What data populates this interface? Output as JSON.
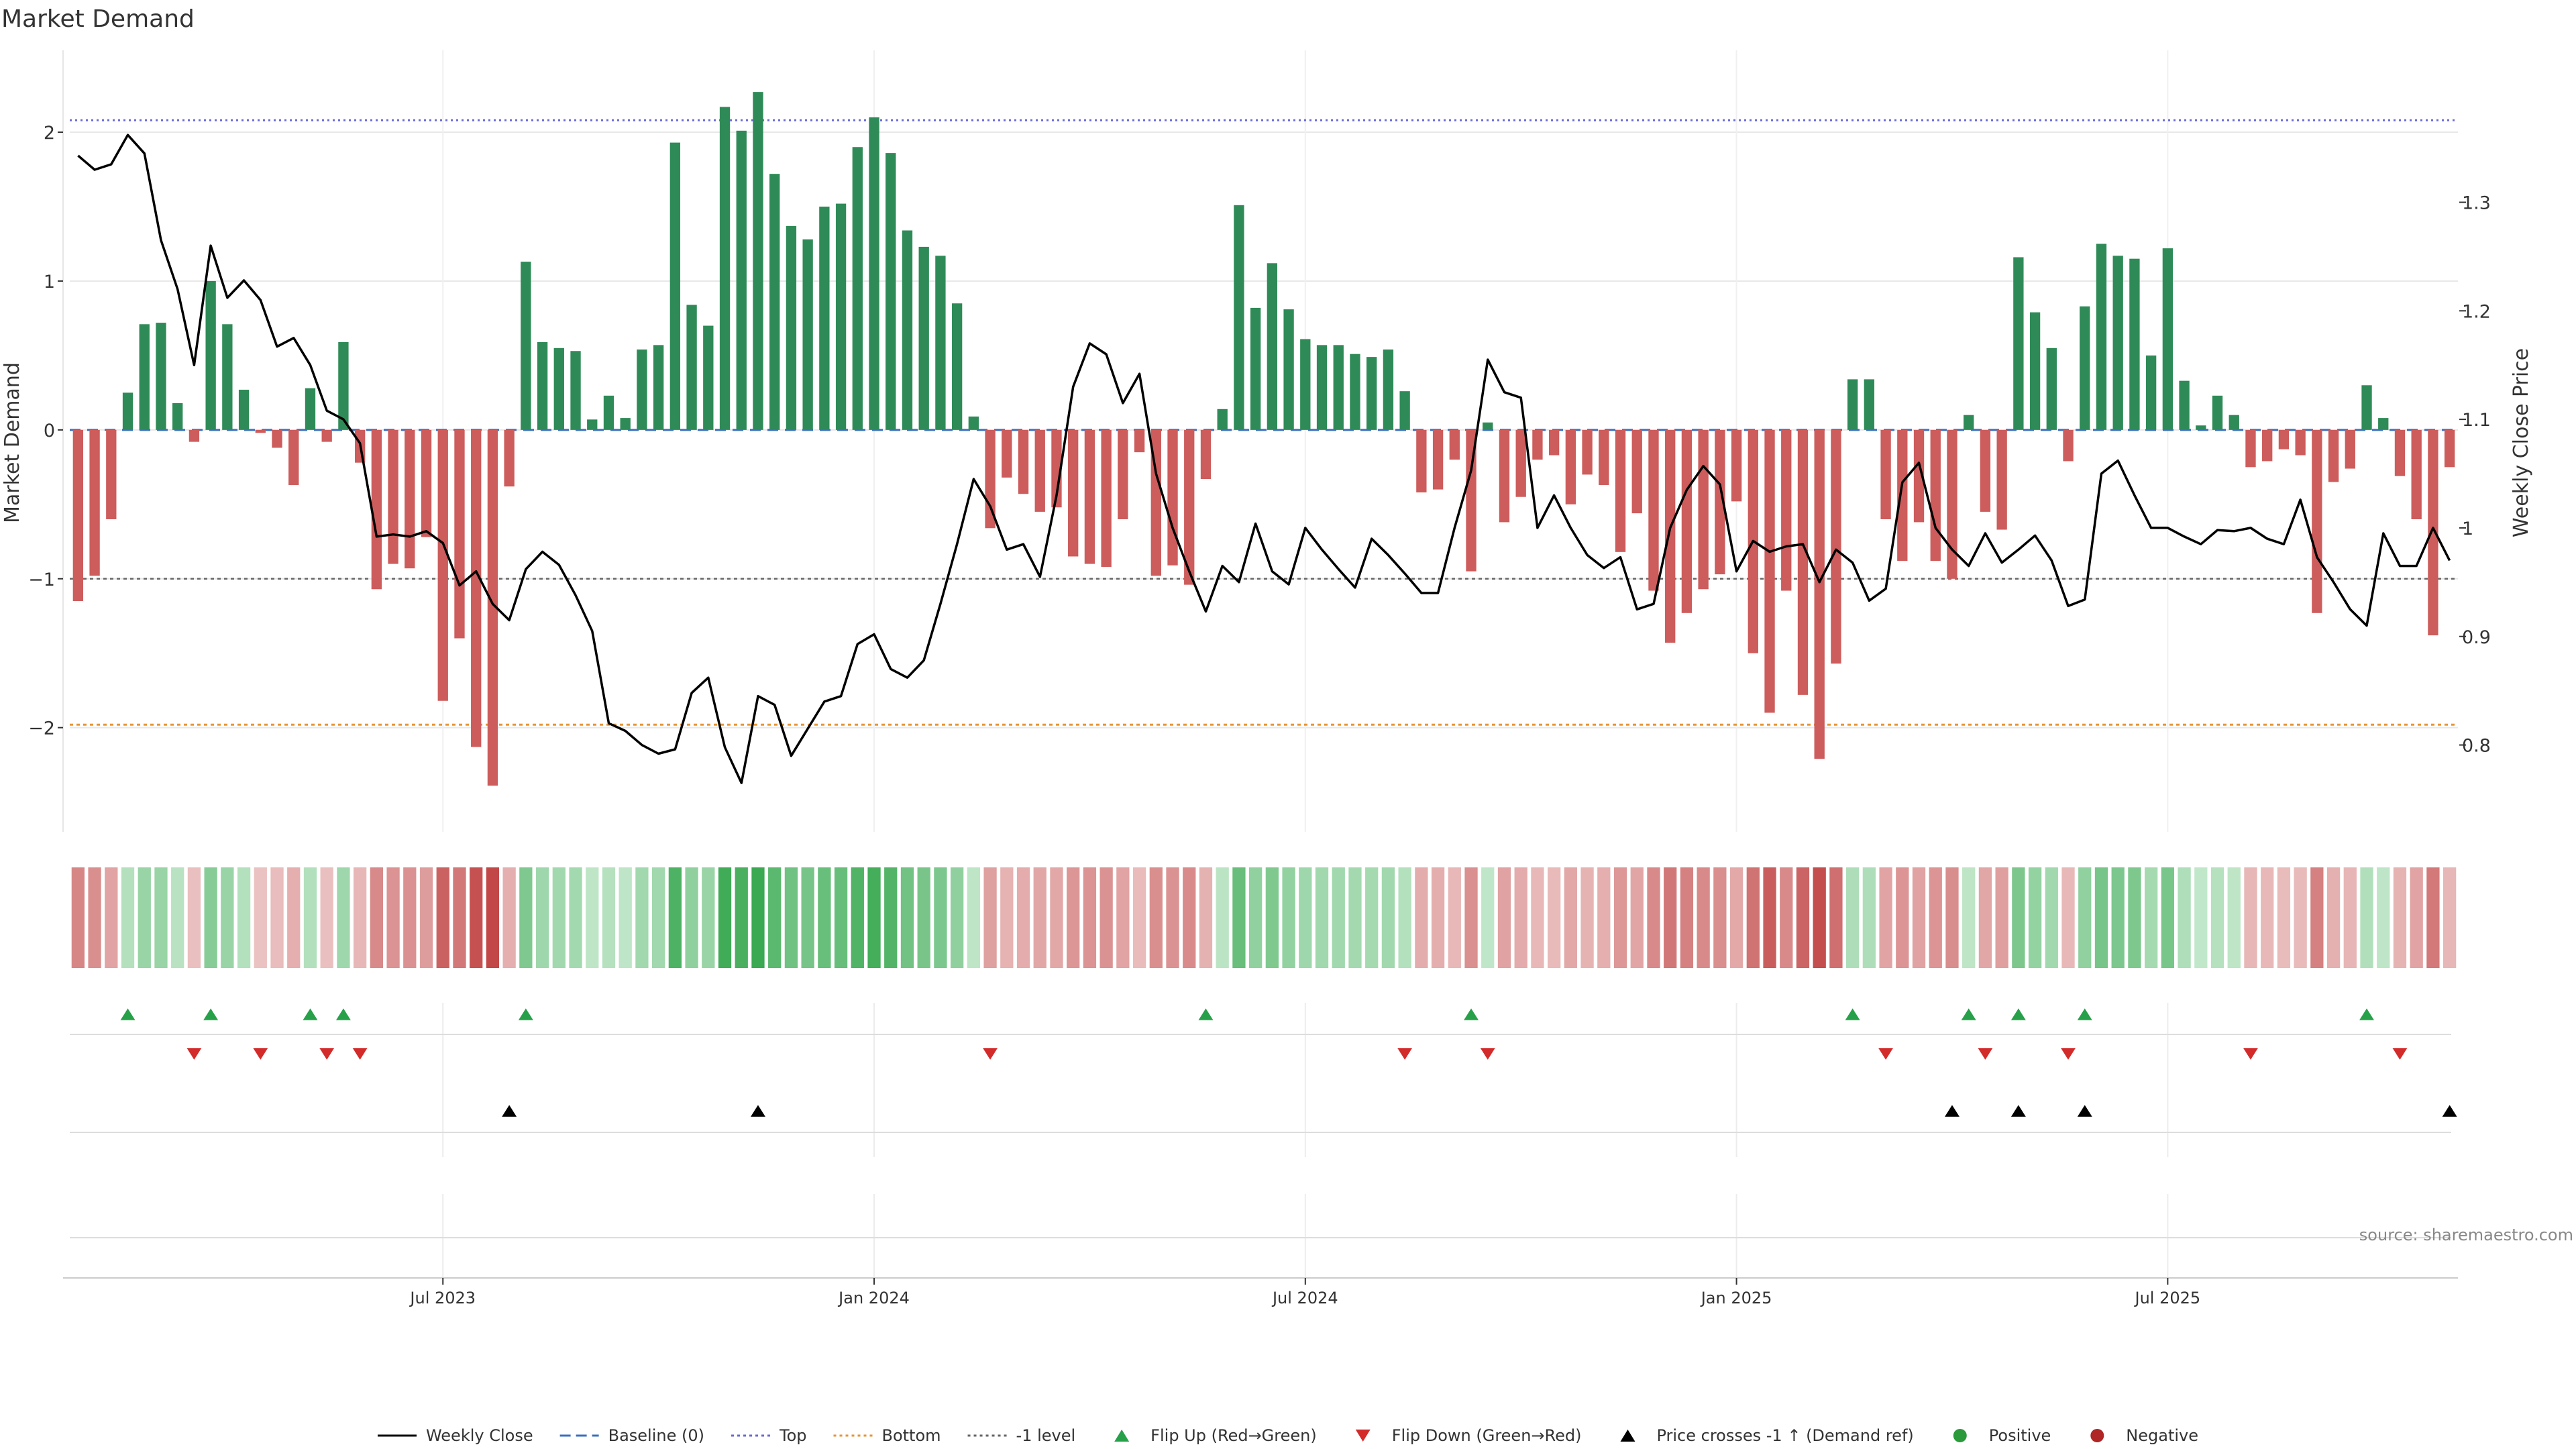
{
  "chart_data": {
    "type": "bar",
    "title": "Market Demand",
    "ylabel": "Market Demand",
    "y2label": "Weekly Close Price",
    "ylim": [
      -2.7,
      2.55
    ],
    "y2lim": [
      0.72,
      1.44
    ],
    "yticks": [
      2,
      1,
      0,
      -1,
      -2
    ],
    "ytick_labels": [
      "2",
      "1",
      "0",
      "−1",
      "−2"
    ],
    "y2ticks": [
      1.3,
      1.2,
      1.1,
      1.0,
      0.9,
      0.8
    ],
    "y2tick_labels": [
      "1.3",
      "1.2",
      "1.1",
      "1",
      "0.9",
      "0.8"
    ],
    "reference_lines": {
      "top": 2.08,
      "bottom": -1.98,
      "minus_one": -1.0,
      "baseline": 0
    },
    "x_count": 144,
    "xticks": [
      {
        "index": 22,
        "label": "Jul 2023"
      },
      {
        "index": 48,
        "label": "Jan 2024"
      },
      {
        "index": 74,
        "label": "Jul 2024"
      },
      {
        "index": 100,
        "label": "Jan 2025"
      },
      {
        "index": 126,
        "label": "Jul 2025"
      }
    ],
    "series": [
      {
        "name": "Market Demand",
        "type": "bar",
        "values": [
          -1.15,
          -0.98,
          -0.6,
          0.25,
          0.71,
          0.72,
          0.18,
          -0.08,
          1.0,
          0.71,
          0.27,
          -0.02,
          -0.12,
          -0.37,
          0.28,
          -0.08,
          0.59,
          -0.22,
          -1.07,
          -0.9,
          -0.93,
          -0.72,
          -1.82,
          -1.4,
          -2.13,
          -2.39,
          -0.38,
          1.13,
          0.59,
          0.55,
          0.53,
          0.07,
          0.23,
          0.08,
          0.54,
          0.57,
          1.93,
          0.84,
          0.7,
          2.17,
          2.01,
          2.27,
          1.72,
          1.37,
          1.28,
          1.5,
          1.52,
          1.9,
          2.1,
          1.86,
          1.34,
          1.23,
          1.17,
          0.85,
          0.09,
          -0.66,
          -0.32,
          -0.43,
          -0.55,
          -0.52,
          -0.85,
          -0.9,
          -0.92,
          -0.6,
          -0.15,
          -0.98,
          -0.91,
          -1.04,
          -0.33,
          0.14,
          1.51,
          0.82,
          1.12,
          0.81,
          0.61,
          0.57,
          0.57,
          0.51,
          0.49,
          0.54,
          0.26,
          -0.42,
          -0.4,
          -0.2,
          -0.95,
          0.05,
          -0.62,
          -0.45,
          -0.2,
          -0.17,
          -0.5,
          -0.3,
          -0.37,
          -0.82,
          -0.56,
          -1.08,
          -1.43,
          -1.23,
          -1.07,
          -0.97,
          -0.48,
          -1.5,
          -1.9,
          -1.08,
          -1.78,
          -2.21,
          -1.57,
          0.34,
          0.34,
          -0.6,
          -0.88,
          -0.62,
          -0.88,
          -1.0,
          0.1,
          -0.55,
          -0.67,
          1.16,
          0.79,
          0.55,
          -0.21,
          0.83,
          1.25,
          1.17,
          1.15,
          0.5,
          1.22,
          0.33,
          0.03,
          0.23,
          0.1,
          -0.25,
          -0.21,
          -0.13,
          -0.17,
          -1.23,
          -0.35,
          -0.26,
          0.3,
          0.08,
          -0.31,
          -0.6,
          -1.38,
          -0.25
        ]
      },
      {
        "name": "Weekly Close",
        "type": "line",
        "axis": "right",
        "values": [
          1.343,
          1.33,
          1.335,
          1.362,
          1.345,
          1.265,
          1.22,
          1.15,
          1.26,
          1.212,
          1.228,
          1.21,
          1.167,
          1.175,
          1.15,
          1.108,
          1.1,
          1.078,
          0.992,
          0.994,
          0.992,
          0.997,
          0.986,
          0.947,
          0.96,
          0.93,
          0.915,
          0.962,
          0.978,
          0.966,
          0.938,
          0.905,
          0.82,
          0.813,
          0.8,
          0.792,
          0.796,
          0.848,
          0.862,
          0.798,
          0.765,
          0.845,
          0.837,
          0.79,
          0.815,
          0.84,
          0.845,
          0.893,
          0.902,
          0.87,
          0.862,
          0.878,
          0.93,
          0.985,
          1.045,
          1.02,
          0.98,
          0.985,
          0.955,
          1.03,
          1.13,
          1.17,
          1.16,
          1.115,
          1.142,
          1.05,
          1.0,
          0.96,
          0.923,
          0.965,
          0.95,
          1.004,
          0.96,
          0.948,
          1.0,
          0.98,
          0.962,
          0.945,
          0.99,
          0.975,
          0.958,
          0.94,
          0.94,
          1.0,
          1.053,
          1.155,
          1.125,
          1.12,
          1.0,
          1.03,
          1.0,
          0.975,
          0.963,
          0.973,
          0.925,
          0.93,
          1.0,
          1.035,
          1.057,
          1.04,
          0.96,
          0.988,
          0.978,
          0.983,
          0.985,
          0.95,
          0.98,
          0.968,
          0.933,
          0.944,
          1.042,
          1.06,
          1.0,
          0.98,
          0.965,
          0.995,
          0.968,
          0.98,
          0.993,
          0.97,
          0.928,
          0.934,
          1.05,
          1.062,
          1.03,
          1.0,
          1.0,
          0.992,
          0.985,
          0.998,
          0.997,
          1.0,
          0.99,
          0.985,
          1.026,
          0.973,
          0.95,
          0.925,
          0.91,
          0.995,
          0.965,
          0.965,
          1.0,
          0.97
        ]
      }
    ],
    "heat_strip": {
      "name": "Demand Heat"
    },
    "markers": {
      "flip_up": [
        3,
        8,
        14,
        16,
        27,
        68,
        84,
        107,
        114,
        117,
        121,
        138
      ],
      "flip_down": [
        7,
        11,
        15,
        17,
        55,
        80,
        85,
        109,
        115,
        120,
        131,
        140
      ],
      "price_cross": [
        26,
        41,
        113,
        117,
        121,
        143
      ]
    },
    "source": "source: sharemaestro.com",
    "legend": {
      "placement": "bottom-center",
      "items": [
        {
          "label": "Weekly Close",
          "kind": "line",
          "color": "#000000",
          "dash": "none"
        },
        {
          "label": "Baseline (0)",
          "kind": "line",
          "color": "#3a6fbf",
          "dash": "long"
        },
        {
          "label": "Top",
          "kind": "line",
          "color": "#6a6ad8",
          "dash": "dot"
        },
        {
          "label": "Bottom",
          "kind": "line",
          "color": "#e69536",
          "dash": "dot"
        },
        {
          "label": "-1 level",
          "kind": "line",
          "color": "#666666",
          "dash": "dot"
        },
        {
          "label": "Flip Up (Red→Green)",
          "kind": "tri-up",
          "color": "#27a04a"
        },
        {
          "label": "Flip Down (Green→Red)",
          "kind": "tri-down",
          "color": "#d32a2a"
        },
        {
          "label": "Price crosses -1 ↑ (Demand ref)",
          "kind": "tri-up",
          "color": "#000000"
        },
        {
          "label": "Positive",
          "kind": "dot",
          "color": "#2a9a3a"
        },
        {
          "label": "Negative",
          "kind": "dot",
          "color": "#b02525"
        }
      ]
    },
    "colors": {
      "positive_bar": "#2e8b57",
      "negative_bar": "#cd5c5c",
      "price_line": "#000000",
      "grid": "#e8e8e8",
      "axis_text": "#333333"
    }
  }
}
